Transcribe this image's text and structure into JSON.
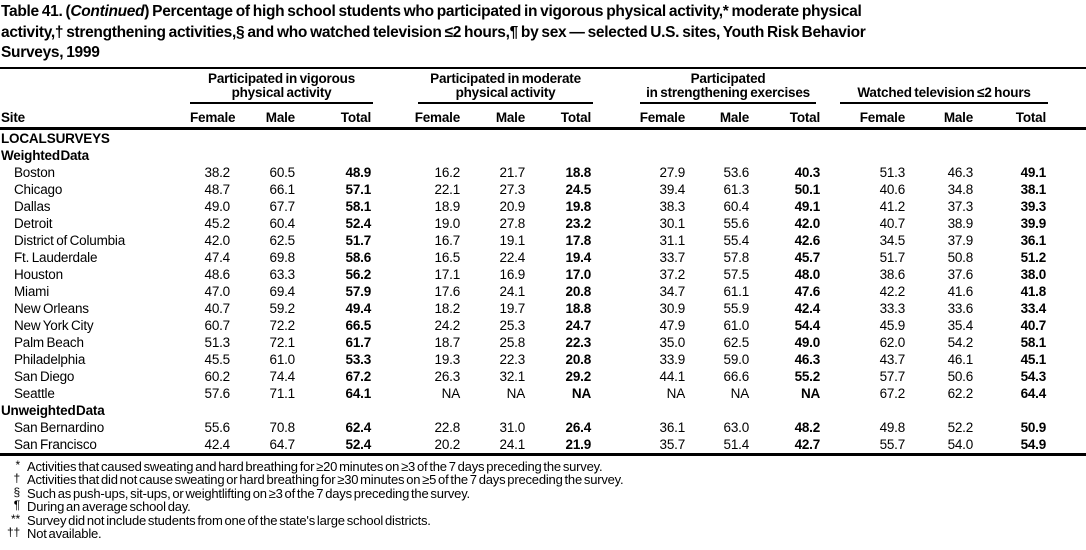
{
  "title": {
    "line1_pre": "Table 41. (",
    "line1_italic": "Continued",
    "line1_post": ") Percentage of high school students who participated in vigorous physical activity,* moderate physical",
    "line2": "activity,† strengthening activities,§ and who watched television ≤2 hours,¶ by sex — selected U.S. sites, Youth Risk Behavior",
    "line3": "Surveys, 1999"
  },
  "columns": {
    "site": "Site",
    "sub": [
      "Female",
      "Male",
      "Total"
    ],
    "groups": [
      {
        "lines": [
          "Participated in vigorous",
          "physical activity"
        ]
      },
      {
        "lines": [
          "Participated in moderate",
          "physical activity"
        ]
      },
      {
        "lines": [
          "Participated",
          "in strengthening exercises"
        ]
      },
      {
        "lines": [
          "Watched television ≤2 hours"
        ]
      }
    ]
  },
  "rows": [
    {
      "type": "section",
      "label": "LOCAL SURVEYS"
    },
    {
      "type": "section",
      "label": "Weighted Data"
    },
    {
      "type": "data",
      "label": "Boston",
      "values": [
        "38.2",
        "60.5",
        "48.9",
        "16.2",
        "21.7",
        "18.8",
        "27.9",
        "53.6",
        "40.3",
        "51.3",
        "46.3",
        "49.1"
      ]
    },
    {
      "type": "data",
      "label": "Chicago",
      "values": [
        "48.7",
        "66.1",
        "57.1",
        "22.1",
        "27.3",
        "24.5",
        "39.4",
        "61.3",
        "50.1",
        "40.6",
        "34.8",
        "38.1"
      ]
    },
    {
      "type": "data",
      "label": "Dallas",
      "values": [
        "49.0",
        "67.7",
        "58.1",
        "18.9",
        "20.9",
        "19.8",
        "38.3",
        "60.4",
        "49.1",
        "41.2",
        "37.3",
        "39.3"
      ]
    },
    {
      "type": "data",
      "label": "Detroit",
      "values": [
        "45.2",
        "60.4",
        "52.4",
        "19.0",
        "27.8",
        "23.2",
        "30.1",
        "55.6",
        "42.0",
        "40.7",
        "38.9",
        "39.9"
      ]
    },
    {
      "type": "data",
      "label": "District of Columbia",
      "values": [
        "42.0",
        "62.5",
        "51.7",
        "16.7",
        "19.1",
        "17.8",
        "31.1",
        "55.4",
        "42.6",
        "34.5",
        "37.9",
        "36.1"
      ]
    },
    {
      "type": "data",
      "label": "Ft. Lauderdale",
      "values": [
        "47.4",
        "69.8",
        "58.6",
        "16.5",
        "22.4",
        "19.4",
        "33.7",
        "57.8",
        "45.7",
        "51.7",
        "50.8",
        "51.2"
      ]
    },
    {
      "type": "data",
      "label": "Houston",
      "values": [
        "48.6",
        "63.3",
        "56.2",
        "17.1",
        "16.9",
        "17.0",
        "37.2",
        "57.5",
        "48.0",
        "38.6",
        "37.6",
        "38.0"
      ]
    },
    {
      "type": "data",
      "label": "Miami",
      "values": [
        "47.0",
        "69.4",
        "57.9",
        "17.6",
        "24.1",
        "20.8",
        "34.7",
        "61.1",
        "47.6",
        "42.2",
        "41.6",
        "41.8"
      ]
    },
    {
      "type": "data",
      "label": "New Orleans",
      "values": [
        "40.7",
        "59.2",
        "49.4",
        "18.2",
        "19.7",
        "18.8",
        "30.9",
        "55.9",
        "42.4",
        "33.3",
        "33.6",
        "33.4"
      ]
    },
    {
      "type": "data",
      "label": "New York City",
      "values": [
        "60.7",
        "72.2",
        "66.5",
        "24.2",
        "25.3",
        "24.7",
        "47.9",
        "61.0",
        "54.4",
        "45.9",
        "35.4",
        "40.7"
      ]
    },
    {
      "type": "data",
      "label": "Palm Beach",
      "values": [
        "51.3",
        "72.1",
        "61.7",
        "18.7",
        "25.8",
        "22.3",
        "35.0",
        "62.5",
        "49.0",
        "62.0",
        "54.2",
        "58.1"
      ]
    },
    {
      "type": "data",
      "label": "Philadelphia",
      "values": [
        "45.5",
        "61.0",
        "53.3",
        "19.3",
        "22.3",
        "20.8",
        "33.9",
        "59.0",
        "46.3",
        "43.7",
        "46.1",
        "45.1"
      ]
    },
    {
      "type": "data",
      "label": "San Diego",
      "values": [
        "60.2",
        "74.4",
        "67.2",
        "26.3",
        "32.1",
        "29.2",
        "44.1",
        "66.6",
        "55.2",
        "57.7",
        "50.6",
        "54.3"
      ]
    },
    {
      "type": "data",
      "label": "Seattle",
      "values": [
        "57.6",
        "71.1",
        "64.1",
        "NA",
        "NA",
        "NA",
        "NA",
        "NA",
        "NA",
        "67.2",
        "62.2",
        "64.4"
      ]
    },
    {
      "type": "section",
      "label": "Unweighted Data"
    },
    {
      "type": "data",
      "label": "San Bernardino",
      "values": [
        "55.6",
        "70.8",
        "62.4",
        "22.8",
        "31.0",
        "26.4",
        "36.1",
        "63.0",
        "48.2",
        "49.8",
        "52.2",
        "50.9"
      ]
    },
    {
      "type": "data",
      "label": "San Francisco",
      "values": [
        "42.4",
        "64.7",
        "52.4",
        "20.2",
        "24.1",
        "21.9",
        "35.7",
        "51.4",
        "42.7",
        "55.7",
        "54.0",
        "54.9"
      ]
    }
  ],
  "footnotes": [
    {
      "marker": "*",
      "text": "Activities that caused sweating and hard breathing for ≥20 minutes on ≥3 of the 7 days preceding the survey."
    },
    {
      "marker": "†",
      "text": "Activities that did not cause sweating or hard breathing for ≥30 minutes on ≥5 of the 7 days preceding the survey."
    },
    {
      "marker": "§",
      "text": "Such as push-ups, sit-ups, or weightlifting on ≥3 of the 7 days preceding the survey."
    },
    {
      "marker": "¶",
      "text": "During an average school day."
    },
    {
      "marker": "**",
      "text": "Survey did not include students from one of the state's large school districts."
    },
    {
      "marker": "††",
      "text": "Not available."
    }
  ],
  "colors": {
    "text": "#000000",
    "background": "#ffffff",
    "rule": "#000000"
  }
}
